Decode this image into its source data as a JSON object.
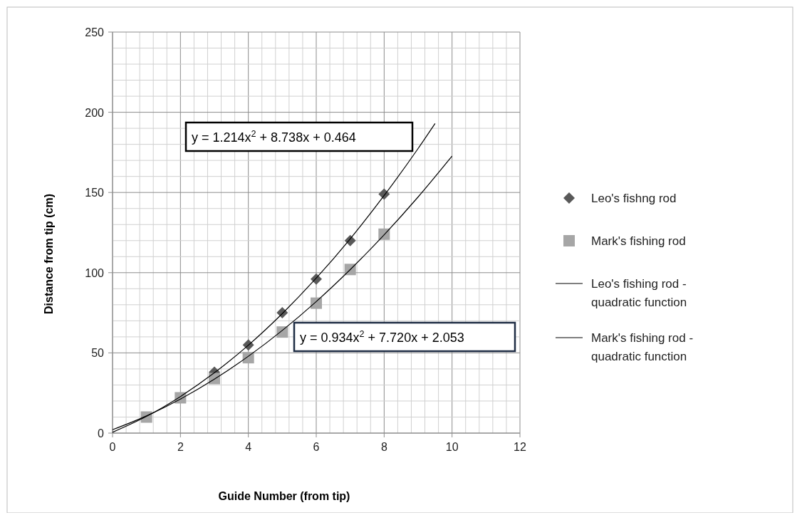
{
  "chart_data": {
    "type": "scatter",
    "xlabel": "Guide Number (from tip)",
    "ylabel": "Distance from tip (cm)",
    "xlim": [
      0,
      12
    ],
    "ylim": [
      0,
      250
    ],
    "xticks": [
      0,
      {
        "value": 0.4,
        "label": null
      },
      {
        "value": 0.8,
        "label": null
      },
      {
        "value": 1.2,
        "label": null
      },
      {
        "value": 1.6,
        "label": null
      },
      2,
      {
        "value": 2.4,
        "label": null
      },
      {
        "value": 2.8,
        "label": null
      },
      {
        "value": 3.2,
        "label": null
      },
      {
        "value": 3.6,
        "label": null
      },
      4,
      {
        "value": 4.4,
        "label": null
      },
      {
        "value": 4.8,
        "label": null
      },
      {
        "value": 5.2,
        "label": null
      },
      {
        "value": 5.6,
        "label": null
      },
      6,
      {
        "value": 6.4,
        "label": null
      },
      {
        "value": 6.8,
        "label": null
      },
      {
        "value": 7.2,
        "label": null
      },
      {
        "value": 7.6,
        "label": null
      },
      8,
      {
        "value": 8.4,
        "label": null
      },
      {
        "value": 8.8,
        "label": null
      },
      {
        "value": 9.2,
        "label": null
      },
      {
        "value": 9.6,
        "label": null
      },
      10,
      {
        "value": 10.4,
        "label": null
      },
      {
        "value": 10.8,
        "label": null
      },
      {
        "value": 11.2,
        "label": null
      },
      {
        "value": 11.6,
        "label": null
      },
      12
    ],
    "yticks": [
      0,
      {
        "value": 10,
        "label": null
      },
      {
        "value": 20,
        "label": null
      },
      {
        "value": 30,
        "label": null
      },
      {
        "value": 40,
        "label": null
      },
      50,
      {
        "value": 60,
        "label": null
      },
      {
        "value": 70,
        "label": null
      },
      {
        "value": 80,
        "label": null
      },
      {
        "value": 90,
        "label": null
      },
      100,
      {
        "value": 110,
        "label": null
      },
      {
        "value": 120,
        "label": null
      },
      {
        "value": 130,
        "label": null
      },
      {
        "value": 140,
        "label": null
      },
      150,
      {
        "value": 160,
        "label": null
      },
      {
        "value": 170,
        "label": null
      },
      {
        "value": 180,
        "label": null
      },
      {
        "value": 190,
        "label": null
      },
      200,
      {
        "value": 210,
        "label": null
      },
      {
        "value": 220,
        "label": null
      },
      {
        "value": 230,
        "label": null
      },
      {
        "value": 240,
        "label": null
      },
      250
    ],
    "grid": true,
    "legend": "right",
    "series": [
      {
        "name": "Leo's fishng rod",
        "color": "#595959",
        "marker": "diamond",
        "x": [
          3,
          4,
          5,
          6,
          7,
          8
        ],
        "values": [
          38,
          55,
          75,
          96,
          120,
          149
        ]
      },
      {
        "name": "Mark's fishing rod",
        "color": "#a6a6a6",
        "marker": "square",
        "x": [
          1,
          2,
          3,
          4,
          5,
          6,
          7,
          8
        ],
        "values": [
          10,
          22,
          34,
          47,
          63,
          81,
          102,
          124
        ]
      },
      {
        "name": "Leo's fishing rod - quadratic function",
        "type": "line",
        "color": "#000000",
        "x": [
          0,
          1,
          2,
          3,
          4,
          5,
          6,
          7,
          8,
          9,
          9.5
        ],
        "values": [
          0.5,
          10.4,
          22.8,
          37.6,
          54.8,
          74.5,
          96.6,
          121.1,
          148.1,
          177.4,
          193.0
        ]
      },
      {
        "name": "Mark's fishing rod - quadratic function",
        "type": "line",
        "color": "#000000",
        "x": [
          0,
          1,
          2,
          3,
          4,
          5,
          6,
          7,
          8,
          9,
          10
        ],
        "values": [
          2.1,
          10.7,
          21.2,
          33.6,
          47.9,
          64.0,
          82.0,
          101.9,
          123.6,
          147.2,
          172.7
        ]
      }
    ],
    "annotations": [
      "y = 1.214x$^{2}$ + 8.738x + 0.464",
      "y = 0.934x$^{2}$ + 7.720x + 2.053"
    ]
  }
}
